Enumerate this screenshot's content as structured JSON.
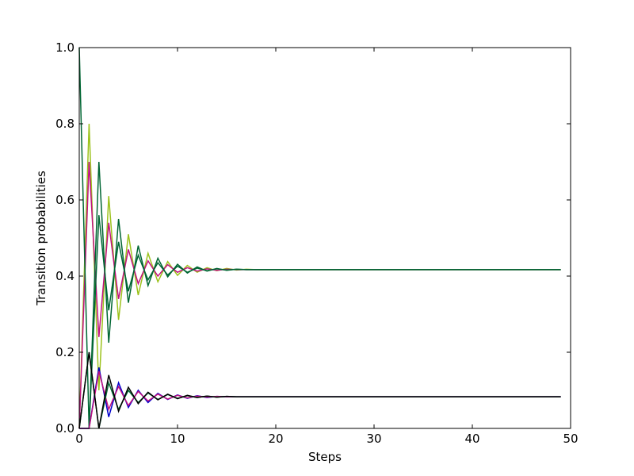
{
  "chart_data": {
    "type": "line",
    "title": "",
    "xlabel": "Steps",
    "ylabel": "Transition probabilities",
    "xlim": [
      0,
      50
    ],
    "ylim": [
      0.0,
      1.0
    ],
    "xticks": [
      "0",
      "10",
      "20",
      "30",
      "40",
      "50"
    ],
    "yticks": [
      "0.0",
      "0.2",
      "0.4",
      "0.6",
      "0.8",
      "1.0"
    ],
    "grid": false,
    "legend": "none",
    "x": [
      0,
      1,
      2,
      3,
      4,
      5,
      6,
      7,
      8,
      9,
      10,
      11,
      12,
      13,
      14,
      15,
      16,
      17,
      18,
      19,
      20,
      21,
      22,
      23,
      24,
      25,
      26,
      27,
      28,
      29,
      30,
      31,
      32,
      33,
      34,
      35,
      36,
      37,
      38,
      39,
      40,
      41,
      42,
      43,
      44,
      45,
      46,
      47,
      48,
      49
    ],
    "series": [
      {
        "color": "#9cc21c",
        "values": [
          0.0,
          0.8,
          0.1,
          0.61,
          0.285,
          0.51,
          0.35,
          0.46,
          0.385,
          0.438,
          0.402,
          0.428,
          0.41,
          0.422,
          0.414,
          0.42,
          0.416,
          0.418,
          0.417,
          0.417,
          0.417,
          0.417,
          0.417,
          0.417,
          0.417,
          0.417,
          0.417,
          0.417,
          0.417,
          0.417,
          0.417,
          0.417,
          0.417,
          0.417,
          0.417,
          0.417,
          0.417,
          0.417,
          0.417,
          0.417,
          0.417,
          0.417,
          0.417,
          0.417,
          0.417,
          0.417,
          0.417,
          0.417,
          0.417,
          0.417
        ]
      },
      {
        "color": "#c0127f",
        "values": [
          0.0,
          0.7,
          0.24,
          0.54,
          0.34,
          0.47,
          0.38,
          0.44,
          0.4,
          0.43,
          0.41,
          0.422,
          0.413,
          0.419,
          0.415,
          0.418,
          0.417,
          0.417,
          0.417,
          0.417,
          0.417,
          0.417,
          0.417,
          0.417,
          0.417,
          0.417,
          0.417,
          0.417,
          0.417,
          0.417,
          0.417,
          0.417,
          0.417,
          0.417,
          0.417,
          0.417,
          0.417,
          0.417,
          0.417,
          0.417,
          0.417,
          0.417,
          0.417,
          0.417,
          0.417,
          0.417,
          0.417,
          0.417,
          0.417,
          0.417
        ]
      },
      {
        "color": "#006633",
        "values": [
          1.0,
          0.0,
          0.7,
          0.225,
          0.55,
          0.33,
          0.48,
          0.375,
          0.447,
          0.398,
          0.431,
          0.408,
          0.424,
          0.413,
          0.42,
          0.415,
          0.418,
          0.417,
          0.417,
          0.417,
          0.417,
          0.417,
          0.417,
          0.417,
          0.417,
          0.417,
          0.417,
          0.417,
          0.417,
          0.417,
          0.417,
          0.417,
          0.417,
          0.417,
          0.417,
          0.417,
          0.417,
          0.417,
          0.417,
          0.417,
          0.417,
          0.417,
          0.417,
          0.417,
          0.417,
          0.417,
          0.417,
          0.417,
          0.417,
          0.417
        ]
      },
      {
        "color": "#006633",
        "values": [
          0.0,
          0.0,
          0.56,
          0.31,
          0.49,
          0.36,
          0.455,
          0.39,
          0.435,
          0.403,
          0.426,
          0.41,
          0.421,
          0.414,
          0.419,
          0.416,
          0.418,
          0.417,
          0.417,
          0.417,
          0.417,
          0.417,
          0.417,
          0.417,
          0.417,
          0.417,
          0.417,
          0.417,
          0.417,
          0.417,
          0.417,
          0.417,
          0.417,
          0.417,
          0.417,
          0.417,
          0.417,
          0.417,
          0.417,
          0.417,
          0.417,
          0.417,
          0.417,
          0.417,
          0.417,
          0.417,
          0.417,
          0.417,
          0.417,
          0.417
        ]
      },
      {
        "color": "#0000cc",
        "values": [
          0.0,
          0.0,
          0.16,
          0.03,
          0.12,
          0.055,
          0.1,
          0.068,
          0.092,
          0.076,
          0.088,
          0.079,
          0.086,
          0.081,
          0.084,
          0.083,
          0.083,
          0.083,
          0.083,
          0.083,
          0.083,
          0.083,
          0.083,
          0.083,
          0.083,
          0.083,
          0.083,
          0.083,
          0.083,
          0.083,
          0.083,
          0.083,
          0.083,
          0.083,
          0.083,
          0.083,
          0.083,
          0.083,
          0.083,
          0.083,
          0.083,
          0.083,
          0.083,
          0.083,
          0.083,
          0.083,
          0.083,
          0.083,
          0.083,
          0.083
        ]
      },
      {
        "color": "#c0127f",
        "values": [
          0.0,
          0.0,
          0.15,
          0.05,
          0.11,
          0.06,
          0.097,
          0.072,
          0.09,
          0.077,
          0.087,
          0.08,
          0.085,
          0.082,
          0.084,
          0.083,
          0.083,
          0.083,
          0.083,
          0.083,
          0.083,
          0.083,
          0.083,
          0.083,
          0.083,
          0.083,
          0.083,
          0.083,
          0.083,
          0.083,
          0.083,
          0.083,
          0.083,
          0.083,
          0.083,
          0.083,
          0.083,
          0.083,
          0.083,
          0.083,
          0.083,
          0.083,
          0.083,
          0.083,
          0.083,
          0.083,
          0.083,
          0.083,
          0.083,
          0.083
        ]
      },
      {
        "color": "#006633",
        "values": [
          0.0,
          0.2,
          0.0,
          0.12,
          0.05,
          0.1,
          0.068,
          0.093,
          0.076,
          0.089,
          0.079,
          0.086,
          0.081,
          0.085,
          0.082,
          0.084,
          0.083,
          0.083,
          0.083,
          0.083,
          0.083,
          0.083,
          0.083,
          0.083,
          0.083,
          0.083,
          0.083,
          0.083,
          0.083,
          0.083,
          0.083,
          0.083,
          0.083,
          0.083,
          0.083,
          0.083,
          0.083,
          0.083,
          0.083,
          0.083,
          0.083,
          0.083,
          0.083,
          0.083,
          0.083,
          0.083,
          0.083,
          0.083,
          0.083,
          0.083
        ]
      },
      {
        "color": "#000000",
        "values": [
          0.0,
          0.2,
          0.0,
          0.14,
          0.045,
          0.108,
          0.065,
          0.095,
          0.075,
          0.09,
          0.078,
          0.087,
          0.081,
          0.085,
          0.082,
          0.084,
          0.083,
          0.083,
          0.083,
          0.083,
          0.083,
          0.083,
          0.083,
          0.083,
          0.083,
          0.083,
          0.083,
          0.083,
          0.083,
          0.083,
          0.083,
          0.083,
          0.083,
          0.083,
          0.083,
          0.083,
          0.083,
          0.083,
          0.083,
          0.083,
          0.083,
          0.083,
          0.083,
          0.083,
          0.083,
          0.083,
          0.083,
          0.083,
          0.083,
          0.083
        ]
      }
    ]
  }
}
